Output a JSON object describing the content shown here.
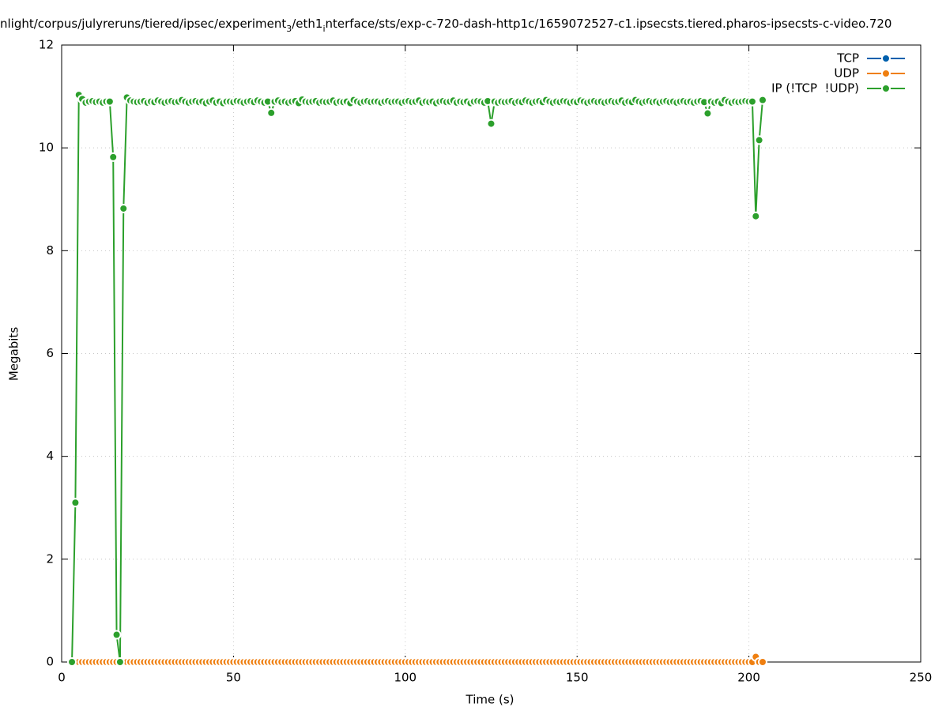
{
  "chart_data": {
    "type": "line",
    "title": [
      {
        "text": "nlight/corpus/julyreruns/tiered/ipsec/experiment"
      },
      {
        "text": "3",
        "subscript": true
      },
      {
        "text": "/eth1"
      },
      {
        "text": "i",
        "subscript": true
      },
      {
        "text": "nterface/sts/exp-c-720-dash-http1c/1659072527-c1.ipsecsts.tiered.pharos-ipsecsts-c-video.720"
      }
    ],
    "xlabel": "Time (s)",
    "ylabel": "Megabits",
    "xlim": [
      0,
      250
    ],
    "xticks": [
      0,
      50,
      100,
      150,
      200,
      250
    ],
    "ylim": [
      0,
      12
    ],
    "yticks": [
      0,
      2,
      4,
      6,
      8,
      10,
      12
    ],
    "grid": true,
    "legend": "top-right",
    "x": [
      3,
      4,
      5,
      6,
      7,
      8,
      9,
      10,
      11,
      12,
      13,
      14,
      15,
      16,
      17,
      18,
      19,
      20,
      21,
      22,
      23,
      24,
      25,
      26,
      27,
      28,
      29,
      30,
      31,
      32,
      33,
      34,
      35,
      36,
      37,
      38,
      39,
      40,
      41,
      42,
      43,
      44,
      45,
      46,
      47,
      48,
      49,
      50,
      51,
      52,
      53,
      54,
      55,
      56,
      57,
      58,
      59,
      60,
      61,
      62,
      63,
      64,
      65,
      66,
      67,
      68,
      69,
      70,
      71,
      72,
      73,
      74,
      75,
      76,
      77,
      78,
      79,
      80,
      81,
      82,
      83,
      84,
      85,
      86,
      87,
      88,
      89,
      90,
      91,
      92,
      93,
      94,
      95,
      96,
      97,
      98,
      99,
      100,
      101,
      102,
      103,
      104,
      105,
      106,
      107,
      108,
      109,
      110,
      111,
      112,
      113,
      114,
      115,
      116,
      117,
      118,
      119,
      120,
      121,
      122,
      123,
      124,
      125,
      126,
      127,
      128,
      129,
      130,
      131,
      132,
      133,
      134,
      135,
      136,
      137,
      138,
      139,
      140,
      141,
      142,
      143,
      144,
      145,
      146,
      147,
      148,
      149,
      150,
      151,
      152,
      153,
      154,
      155,
      156,
      157,
      158,
      159,
      160,
      161,
      162,
      163,
      164,
      165,
      166,
      167,
      168,
      169,
      170,
      171,
      172,
      173,
      174,
      175,
      176,
      177,
      178,
      179,
      180,
      181,
      182,
      183,
      184,
      185,
      186,
      187,
      188,
      189,
      190,
      191,
      192,
      193,
      194,
      195,
      196,
      197,
      198,
      199,
      200,
      201,
      202,
      203,
      204
    ],
    "series": [
      {
        "name": "TCP",
        "color": "#0060ad",
        "values": [
          0,
          0,
          0,
          0,
          0,
          0,
          0,
          0,
          0,
          0,
          0,
          0,
          0,
          0,
          0,
          0,
          0,
          0,
          0,
          0,
          0,
          0,
          0,
          0,
          0,
          0,
          0,
          0,
          0,
          0,
          0,
          0,
          0,
          0,
          0,
          0,
          0,
          0,
          0,
          0,
          0,
          0,
          0,
          0,
          0,
          0,
          0,
          0,
          0,
          0,
          0,
          0,
          0,
          0,
          0,
          0,
          0,
          0,
          0,
          0,
          0,
          0,
          0,
          0,
          0,
          0,
          0,
          0,
          0,
          0,
          0,
          0,
          0,
          0,
          0,
          0,
          0,
          0,
          0,
          0,
          0,
          0,
          0,
          0,
          0,
          0,
          0,
          0,
          0,
          0,
          0,
          0,
          0,
          0,
          0,
          0,
          0,
          0,
          0,
          0,
          0,
          0,
          0,
          0,
          0,
          0,
          0,
          0,
          0,
          0,
          0,
          0,
          0,
          0,
          0,
          0,
          0,
          0,
          0,
          0,
          0,
          0,
          0,
          0,
          0,
          0,
          0,
          0,
          0,
          0,
          0,
          0,
          0,
          0,
          0,
          0,
          0,
          0,
          0,
          0,
          0,
          0,
          0,
          0,
          0,
          0,
          0,
          0,
          0,
          0,
          0,
          0,
          0,
          0,
          0,
          0,
          0,
          0,
          0,
          0,
          0,
          0,
          0,
          0,
          0,
          0,
          0,
          0,
          0,
          0,
          0,
          0,
          0,
          0,
          0,
          0,
          0,
          0,
          0,
          0,
          0,
          0,
          0,
          0,
          0,
          0,
          0,
          0,
          0,
          0,
          0,
          0,
          0,
          0,
          0,
          0,
          0,
          0,
          0,
          0,
          0,
          0
        ]
      },
      {
        "name": "UDP",
        "color": "#ef7f10",
        "values": [
          0,
          0,
          0,
          0,
          0,
          0,
          0,
          0,
          0,
          0,
          0,
          0,
          0,
          0,
          0,
          0,
          0,
          0,
          0,
          0,
          0,
          0,
          0,
          0,
          0,
          0,
          0,
          0,
          0,
          0,
          0,
          0,
          0,
          0,
          0,
          0,
          0,
          0,
          0,
          0,
          0,
          0,
          0,
          0,
          0,
          0,
          0,
          0,
          0,
          0,
          0,
          0,
          0,
          0,
          0,
          0,
          0,
          0,
          0,
          0,
          0,
          0,
          0,
          0,
          0,
          0,
          0,
          0,
          0,
          0,
          0,
          0,
          0,
          0,
          0,
          0,
          0,
          0,
          0,
          0,
          0,
          0,
          0,
          0,
          0,
          0,
          0,
          0,
          0,
          0,
          0,
          0,
          0,
          0,
          0,
          0,
          0,
          0,
          0,
          0,
          0,
          0,
          0,
          0,
          0,
          0,
          0,
          0,
          0,
          0,
          0,
          0,
          0,
          0,
          0,
          0,
          0,
          0,
          0,
          0,
          0,
          0,
          0,
          0,
          0,
          0,
          0,
          0,
          0,
          0,
          0,
          0,
          0,
          0,
          0,
          0,
          0,
          0,
          0,
          0,
          0,
          0,
          0,
          0,
          0,
          0,
          0,
          0,
          0,
          0,
          0,
          0,
          0,
          0,
          0,
          0,
          0,
          0,
          0,
          0,
          0,
          0,
          0,
          0,
          0,
          0,
          0,
          0,
          0,
          0,
          0,
          0,
          0,
          0,
          0,
          0,
          0,
          0,
          0,
          0,
          0,
          0,
          0,
          0,
          0,
          0,
          0,
          0,
          0,
          0,
          0,
          0,
          0,
          0,
          0,
          0,
          0,
          0,
          0,
          0.1,
          0,
          0
        ]
      },
      {
        "name": "IP (!TCP  !UDP)",
        "color": "#2ca02c",
        "values": [
          0,
          3.1,
          11.03,
          10.95,
          10.88,
          10.9,
          10.91,
          10.89,
          10.9,
          10.88,
          10.9,
          10.9,
          9.82,
          0.53,
          0,
          8.82,
          10.98,
          10.92,
          10.9,
          10.89,
          10.9,
          10.91,
          10.88,
          10.9,
          10.89,
          10.92,
          10.9,
          10.88,
          10.9,
          10.91,
          10.89,
          10.9,
          10.93,
          10.9,
          10.88,
          10.9,
          10.91,
          10.89,
          10.9,
          10.87,
          10.9,
          10.92,
          10.88,
          10.9,
          10.87,
          10.9,
          10.9,
          10.89,
          10.91,
          10.9,
          10.88,
          10.9,
          10.91,
          10.89,
          10.92,
          10.9,
          10.88,
          10.9,
          10.68,
          10.9,
          10.92,
          10.89,
          10.9,
          10.88,
          10.9,
          10.91,
          10.87,
          10.94,
          10.9,
          10.89,
          10.9,
          10.91,
          10.88,
          10.9,
          10.89,
          10.9,
          10.92,
          10.88,
          10.9,
          10.89,
          10.9,
          10.87,
          10.93,
          10.9,
          10.88,
          10.9,
          10.91,
          10.89,
          10.9,
          10.9,
          10.88,
          10.9,
          10.91,
          10.89,
          10.9,
          10.9,
          10.88,
          10.9,
          10.91,
          10.89,
          10.9,
          10.92,
          10.88,
          10.9,
          10.89,
          10.9,
          10.87,
          10.9,
          10.91,
          10.89,
          10.9,
          10.92,
          10.88,
          10.9,
          10.89,
          10.9,
          10.87,
          10.9,
          10.91,
          10.9,
          10.88,
          10.91,
          10.47,
          10.9,
          10.88,
          10.9,
          10.89,
          10.9,
          10.91,
          10.88,
          10.9,
          10.89,
          10.92,
          10.9,
          10.88,
          10.9,
          10.91,
          10.89,
          10.93,
          10.9,
          10.88,
          10.9,
          10.89,
          10.91,
          10.9,
          10.88,
          10.9,
          10.89,
          10.92,
          10.9,
          10.88,
          10.9,
          10.91,
          10.89,
          10.9,
          10.88,
          10.9,
          10.91,
          10.89,
          10.9,
          10.92,
          10.88,
          10.9,
          10.89,
          10.93,
          10.9,
          10.88,
          10.9,
          10.91,
          10.89,
          10.9,
          10.88,
          10.9,
          10.91,
          10.89,
          10.9,
          10.88,
          10.9,
          10.91,
          10.89,
          10.9,
          10.88,
          10.9,
          10.91,
          10.89,
          10.67,
          10.9,
          10.88,
          10.9,
          10.87,
          10.93,
          10.9,
          10.88,
          10.9,
          10.89,
          10.9,
          10.91,
          10.9,
          10.9,
          8.67,
          10.15,
          10.93
        ]
      }
    ]
  }
}
